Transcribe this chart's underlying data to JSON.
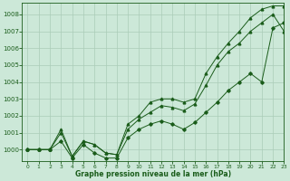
{
  "title": "Graphe pression niveau de la mer (hPa)",
  "bg_color": "#cce8d8",
  "grid_color": "#aaccb8",
  "line_color": "#1a5c1a",
  "xlim": [
    -0.5,
    23
  ],
  "ylim": [
    999.3,
    1008.7
  ],
  "xticks": [
    0,
    1,
    2,
    3,
    4,
    5,
    6,
    7,
    8,
    9,
    10,
    11,
    12,
    13,
    14,
    15,
    16,
    17,
    18,
    19,
    20,
    21,
    22,
    23
  ],
  "yticks": [
    1000,
    1001,
    1002,
    1003,
    1004,
    1005,
    1006,
    1007,
    1008
  ],
  "x": [
    0,
    1,
    2,
    3,
    4,
    5,
    6,
    7,
    8,
    9,
    10,
    11,
    12,
    13,
    14,
    15,
    16,
    17,
    18,
    19,
    20,
    21,
    22,
    23
  ],
  "line_jagged": [
    1000.0,
    1000.0,
    1000.0,
    1000.5,
    999.5,
    1000.3,
    999.8,
    999.5,
    999.5,
    1000.7,
    1001.2,
    1001.5,
    1001.7,
    1001.5,
    1001.2,
    1001.6,
    1002.2,
    1002.8,
    1003.5,
    1004.0,
    1004.5,
    1004.0,
    1007.2,
    1007.5
  ],
  "line_mid": [
    1000.0,
    1000.0,
    1000.0,
    1001.0,
    999.6,
    1000.5,
    1000.3,
    999.8,
    999.7,
    1001.2,
    1001.8,
    1002.2,
    1002.6,
    1002.5,
    1002.3,
    1002.7,
    1003.8,
    1005.0,
    1005.8,
    1006.3,
    1007.0,
    1007.5,
    1008.0,
    1007.0
  ],
  "line_top": [
    1000.0,
    1000.0,
    1000.0,
    1001.2,
    999.6,
    1000.5,
    1000.3,
    999.8,
    999.7,
    1001.5,
    1002.0,
    1002.8,
    1003.0,
    1003.0,
    1002.8,
    1003.0,
    1004.5,
    1005.5,
    1006.3,
    1007.0,
    1007.8,
    1008.3,
    1008.5,
    1008.5
  ]
}
